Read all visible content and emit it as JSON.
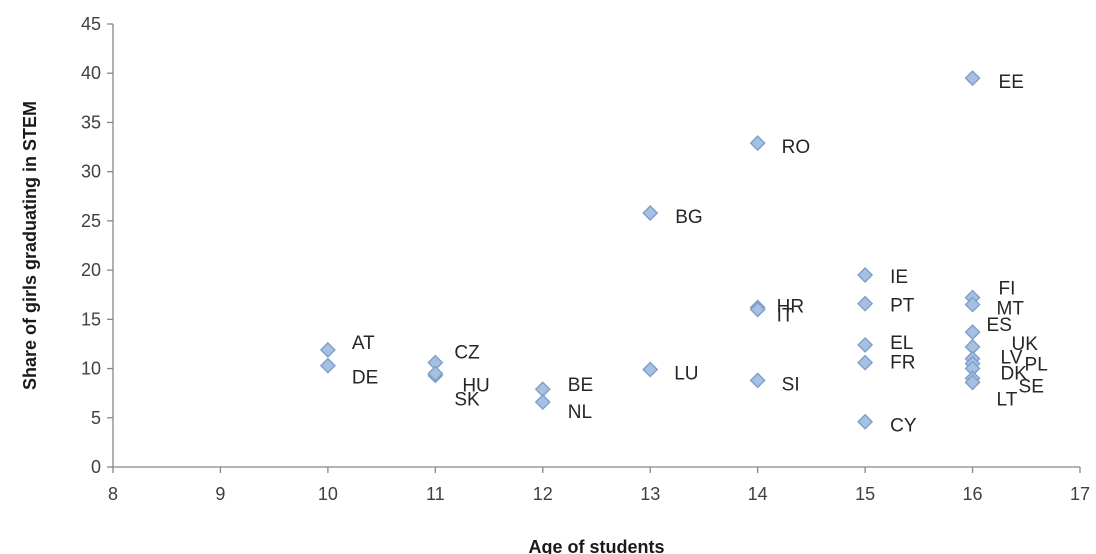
{
  "chart_data": {
    "type": "scatter",
    "xlabel": "Age of students",
    "ylabel": "Share of girls graduating in STEM",
    "xlim": [
      8,
      17
    ],
    "ylim": [
      0,
      45
    ],
    "xticks": [
      "8",
      "9",
      "10",
      "11",
      "12",
      "13",
      "14",
      "15",
      "16",
      "17"
    ],
    "yticks": [
      "0",
      "5",
      "10",
      "15",
      "20",
      "25",
      "30",
      "35",
      "40",
      "45"
    ],
    "grid": false,
    "legend": "none",
    "marker": "diamond",
    "marker_color": "#a6c0e3",
    "marker_edge_color": "#7f9fc9",
    "points": [
      {
        "label": "AT",
        "x": 10,
        "y": 11.9
      },
      {
        "label": "DE",
        "x": 10,
        "y": 10.3
      },
      {
        "label": "CZ",
        "x": 11,
        "y": 10.6
      },
      {
        "label": "HU",
        "x": 11,
        "y": 9.3
      },
      {
        "label": "SK",
        "x": 11,
        "y": 9.5
      },
      {
        "label": "BE",
        "x": 12,
        "y": 7.9
      },
      {
        "label": "NL",
        "x": 12,
        "y": 6.6
      },
      {
        "label": "BG",
        "x": 13,
        "y": 25.8
      },
      {
        "label": "LU",
        "x": 13,
        "y": 9.9
      },
      {
        "label": "RO",
        "x": 14,
        "y": 32.9
      },
      {
        "label": "HR",
        "x": 14,
        "y": 16.2
      },
      {
        "label": "IT",
        "x": 14,
        "y": 16.0
      },
      {
        "label": "SI",
        "x": 14,
        "y": 8.8
      },
      {
        "label": "IE",
        "x": 15,
        "y": 19.5
      },
      {
        "label": "PT",
        "x": 15,
        "y": 16.6
      },
      {
        "label": "EL",
        "x": 15,
        "y": 12.4
      },
      {
        "label": "FR",
        "x": 15,
        "y": 10.6
      },
      {
        "label": "CY",
        "x": 15,
        "y": 4.6
      },
      {
        "label": "EE",
        "x": 16,
        "y": 39.5
      },
      {
        "label": "FI",
        "x": 16,
        "y": 17.2
      },
      {
        "label": "MT",
        "x": 16,
        "y": 16.5
      },
      {
        "label": "ES",
        "x": 16,
        "y": 13.7
      },
      {
        "label": "UK",
        "x": 16,
        "y": 12.2
      },
      {
        "label": "LV",
        "x": 16,
        "y": 11.0
      },
      {
        "label": "PL",
        "x": 16,
        "y": 10.5
      },
      {
        "label": "DK",
        "x": 16,
        "y": 10.0
      },
      {
        "label": "SE",
        "x": 16,
        "y": 9.0
      },
      {
        "label": "LT",
        "x": 16,
        "y": 8.6
      }
    ]
  }
}
